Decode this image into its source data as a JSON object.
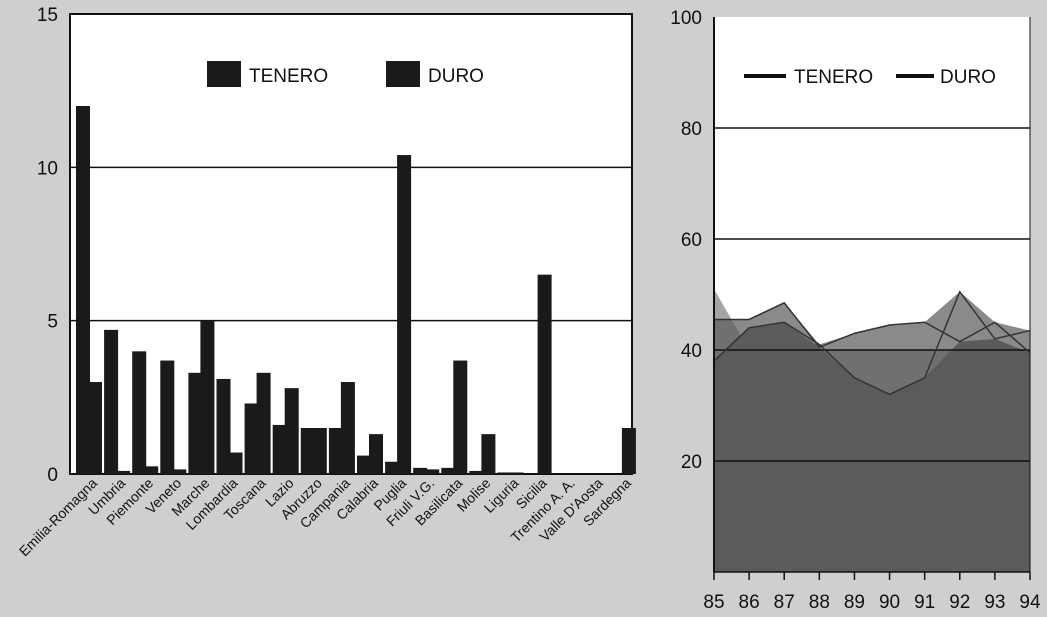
{
  "chart_data": [
    {
      "type": "bar",
      "categories": [
        "Emilia-Romagna",
        "Umbria",
        "Piemonte",
        "Veneto",
        "Marche",
        "Lombardia",
        "Toscana",
        "Lazio",
        "Abruzzo",
        "Campania",
        "Calabria",
        "Puglia",
        "Friuli V.G.",
        "Basilicata",
        "Molise",
        "Liguria",
        "Sicilia",
        "Trentino A. A.",
        "Valle D'Aosta",
        "Sardegna"
      ],
      "series": [
        {
          "name": "TENERO",
          "values": [
            12.0,
            4.7,
            4.0,
            3.7,
            3.3,
            3.1,
            2.3,
            1.6,
            1.5,
            1.5,
            0.6,
            0.4,
            0.2,
            0.2,
            0.1,
            0.05,
            0.0,
            0.0,
            0.0,
            0.0
          ]
        },
        {
          "name": "DURO",
          "values": [
            3.0,
            0.1,
            0.25,
            0.15,
            5.0,
            0.7,
            3.3,
            2.8,
            1.5,
            3.0,
            1.3,
            10.4,
            0.15,
            3.7,
            1.3,
            0.05,
            6.5,
            0.0,
            0.0,
            1.5
          ]
        }
      ],
      "yticks": [
        "0",
        "5",
        "10",
        "15"
      ],
      "ylim": [
        0,
        15
      ],
      "grid": true,
      "legend": "top"
    },
    {
      "type": "area",
      "x": [
        "85",
        "86",
        "87",
        "88",
        "89",
        "90",
        "91",
        "92",
        "93",
        "94"
      ],
      "series": [
        {
          "name": "TENERO",
          "values": [
            38,
            44,
            45,
            41,
            35,
            32,
            35,
            50.5,
            42,
            43.5
          ]
        },
        {
          "name": "DURO",
          "values": [
            45.5,
            45.5,
            48.5,
            40.5,
            43,
            44.5,
            45,
            41.5,
            45,
            39.5
          ]
        }
      ],
      "extra_series": {
        "values": [
          51,
          40,
          40,
          40,
          40,
          40,
          40,
          40,
          40,
          40
        ]
      },
      "yticks": [
        "20",
        "40",
        "60",
        "80",
        "100"
      ],
      "ylim": [
        0,
        100
      ],
      "grid": true,
      "legend": "top"
    }
  ],
  "colors": {
    "bar": "#1a1a1a",
    "area_dark": "#5b5b5b",
    "area_light": "#8a8a8a",
    "plot_bg": "#ffffff"
  }
}
